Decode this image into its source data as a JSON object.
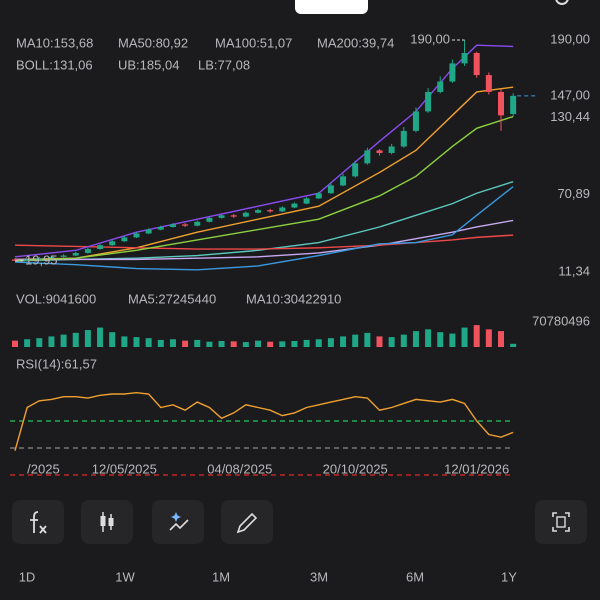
{
  "chart_data": [
    {
      "type": "candlestick",
      "open": [
        21,
        20,
        21,
        22,
        23,
        24,
        26,
        29,
        32,
        35,
        38,
        41,
        44,
        46,
        48,
        47,
        50,
        53,
        55,
        54,
        57,
        59,
        58,
        61,
        64,
        68,
        72,
        78,
        85,
        95,
        105,
        103,
        108,
        120,
        135,
        150,
        158,
        172,
        180,
        163,
        150,
        133
      ],
      "high": [
        22,
        22,
        23,
        24,
        25,
        27,
        30,
        33,
        36,
        39,
        42,
        45,
        47,
        49,
        49,
        51,
        54,
        56,
        56,
        58,
        60,
        60,
        62,
        65,
        69,
        73,
        80,
        87,
        97,
        107,
        106,
        110,
        123,
        138,
        153,
        162,
        175,
        190,
        181,
        165,
        152,
        149
      ],
      "low": [
        19.95,
        20,
        20.5,
        21.5,
        22.5,
        23.5,
        25.5,
        28.5,
        31.5,
        34.5,
        37.5,
        40.5,
        43.5,
        45.5,
        46,
        46.5,
        49.5,
        52.5,
        53,
        53.5,
        56.5,
        57,
        57.5,
        60.5,
        63.5,
        67.5,
        71.5,
        77.5,
        84,
        94,
        101,
        102,
        107,
        119,
        134,
        149,
        157,
        170,
        161,
        148,
        120,
        131
      ],
      "close": [
        20,
        21,
        22,
        23,
        24,
        26,
        29,
        32,
        35,
        38,
        41,
        44,
        46,
        48,
        47,
        50,
        53,
        55,
        54,
        57,
        59,
        58,
        61,
        64,
        68,
        72,
        78,
        85,
        95,
        105,
        103,
        108,
        120,
        135,
        150,
        158,
        172,
        180,
        163,
        150,
        132,
        147
      ],
      "up_color": "#1fa787",
      "down_color": "#f0525e",
      "ylim": [
        11.34,
        190
      ],
      "yticks": [
        {
          "value": 190,
          "label": "190,00"
        },
        {
          "value": 130.44,
          "label": "130,44"
        },
        {
          "value": 70.89,
          "label": "70,89"
        },
        {
          "value": 11.34,
          "label": "11,34"
        }
      ],
      "last_price": {
        "value": 147,
        "label": "147,00"
      },
      "max_label": {
        "value": 190,
        "label": "190,00"
      },
      "min_label": {
        "value": 19.95,
        "label": "19,95"
      },
      "series": [
        {
          "name": "MA10:153,68",
          "color": "#f0a030",
          "x": [
            0,
            5,
            10,
            15,
            20,
            25,
            30,
            33,
            36,
            38,
            41
          ],
          "values": [
            21,
            22,
            30,
            42,
            52,
            62,
            88,
            105,
            132,
            150,
            153.68
          ]
        },
        {
          "name": "MA50:80,92",
          "color": "#5cc8c0",
          "x": [
            0,
            5,
            10,
            15,
            20,
            25,
            30,
            33,
            36,
            38,
            41
          ],
          "values": [
            20,
            21,
            22,
            24,
            28,
            34,
            46,
            55,
            64,
            72,
            80.92
          ]
        },
        {
          "name": "MA100:51,07",
          "color": "#c8a8f0",
          "x": [
            0,
            5,
            10,
            15,
            20,
            25,
            30,
            33,
            36,
            38,
            41
          ],
          "values": [
            21,
            21,
            21,
            22,
            23,
            26,
            32,
            37,
            42,
            46,
            51.07
          ]
        },
        {
          "name": "MA200:39,74",
          "color": "#f04848",
          "x": [
            0,
            5,
            10,
            15,
            20,
            25,
            30,
            33,
            36,
            38,
            41
          ],
          "values": [
            32,
            31,
            30,
            29,
            29,
            30,
            32,
            34,
            36,
            38,
            39.74
          ]
        },
        {
          "name": "BOLL:131,06",
          "color": "#8cd040",
          "x": [
            0,
            5,
            10,
            15,
            20,
            25,
            30,
            33,
            36,
            38,
            41
          ],
          "values": [
            20,
            22,
            28,
            36,
            44,
            52,
            70,
            85,
            108,
            122,
            131.06
          ]
        },
        {
          "name": "UB:185,04",
          "color": "#8a4cf0",
          "x": [
            0,
            5,
            10,
            15,
            20,
            25,
            30,
            33,
            36,
            38,
            41
          ],
          "values": [
            23,
            28,
            42,
            52,
            62,
            72,
            112,
            135,
            168,
            186,
            185.04
          ]
        },
        {
          "name": "LB:77,08",
          "color": "#3a9ae0",
          "x": [
            0,
            5,
            10,
            15,
            20,
            25,
            30,
            33,
            36,
            38,
            41
          ],
          "values": [
            19,
            17,
            14,
            13,
            16,
            24,
            33,
            34,
            40,
            55,
            77.08
          ]
        }
      ]
    },
    {
      "type": "bar",
      "legend": [
        "VOL:9041600",
        "MA5:27245440",
        "MA10:30422910"
      ],
      "legend_colors": [
        "#8a4cf0",
        "#f0a030",
        "#c8a8f0"
      ],
      "values": [
        18000000,
        22000000,
        25000000,
        30000000,
        35000000,
        40000000,
        48000000,
        55000000,
        42000000,
        30000000,
        28000000,
        25000000,
        20000000,
        22000000,
        18000000,
        20000000,
        15000000,
        17000000,
        16000000,
        14000000,
        18000000,
        15000000,
        16000000,
        17000000,
        20000000,
        22000000,
        25000000,
        30000000,
        35000000,
        40000000,
        30000000,
        28000000,
        35000000,
        45000000,
        50000000,
        42000000,
        38000000,
        55000000,
        62000000,
        50000000,
        45000000,
        9041600
      ],
      "ylim": [
        0,
        70780496
      ],
      "yticks": [
        70780496
      ]
    },
    {
      "type": "line",
      "title": "RSI(14):61,57",
      "color": "#f0a030",
      "values": [
        48,
        80,
        85,
        86,
        88,
        88,
        87,
        89,
        90,
        90,
        91,
        90,
        80,
        82,
        78,
        84,
        80,
        72,
        76,
        82,
        80,
        78,
        74,
        76,
        80,
        82,
        84,
        86,
        88,
        87,
        78,
        80,
        83,
        86,
        85,
        84,
        86,
        83,
        70,
        60,
        58,
        61.57
      ],
      "ylim": [
        30,
        100
      ],
      "levels": [
        {
          "value": 70,
          "color": "#22c55e"
        },
        {
          "value": 50,
          "color": "#888888"
        },
        {
          "value": 30,
          "color": "#e02a2a"
        }
      ],
      "xticks": [
        {
          "value": 1,
          "label": "/2025"
        },
        {
          "value": 9,
          "label": "12/05/2025"
        },
        {
          "value": 18.5,
          "label": "04/08/2025"
        },
        {
          "value": 28,
          "label": "20/10/2025"
        },
        {
          "value": 38,
          "label": "12/01/2026"
        }
      ]
    }
  ],
  "timeframes": [
    "1D",
    "1W",
    "1M",
    "3M",
    "6M",
    "1Y"
  ]
}
